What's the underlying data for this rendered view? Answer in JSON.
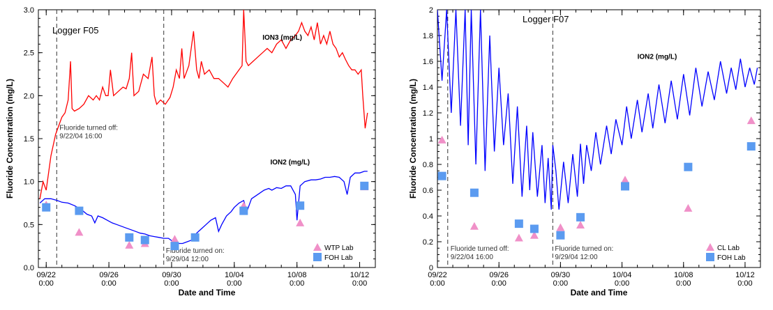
{
  "chart_data": [
    {
      "type": "line",
      "title": "Logger F05",
      "xlabel": "Date and Time",
      "ylabel": "Fluoride Concentration (mg/L)",
      "xlim": [
        21.5,
        43
      ],
      "ylim": [
        0,
        3
      ],
      "x_ticks": [
        22,
        26,
        30,
        34,
        38,
        42
      ],
      "x_tick_labels": [
        [
          "09/22",
          "0:00"
        ],
        [
          "09/26",
          "0:00"
        ],
        [
          "09/30",
          "0:00"
        ],
        [
          "10/04",
          "0:00"
        ],
        [
          "10/08",
          "0:00"
        ],
        [
          "10/12",
          "0:00"
        ]
      ],
      "y_ticks": [
        0,
        0.5,
        1,
        1.5,
        2,
        2.5,
        3
      ],
      "y_tick_labels": [
        "0.0",
        "0.5",
        "1.0",
        "1.5",
        "2.0",
        "2.5",
        "3.0"
      ],
      "annotations": [
        {
          "text_lines": [
            "Fluoride turned off:",
            "9/22/04  16:00"
          ],
          "x": 22.67
        },
        {
          "text_lines": [
            "Fluoride turned on:",
            "9/29/04  12:00"
          ],
          "x": 29.5
        }
      ],
      "series": [
        {
          "name": "ION3 (mg/L)",
          "kind": "line",
          "color": "#ff0000",
          "label_at": [
            35.8,
            2.65
          ],
          "x": [
            21.6,
            21.8,
            22.0,
            22.3,
            22.6,
            22.8,
            23.0,
            23.2,
            23.4,
            23.55,
            23.65,
            23.8,
            24.1,
            24.4,
            24.7,
            25.0,
            25.2,
            25.4,
            25.6,
            25.8,
            25.95,
            26.1,
            26.3,
            26.6,
            26.9,
            27.1,
            27.3,
            27.45,
            27.6,
            27.9,
            28.2,
            28.5,
            28.75,
            28.9,
            29.05,
            29.3,
            29.6,
            29.9,
            30.1,
            30.3,
            30.5,
            30.65,
            30.8,
            31.1,
            31.4,
            31.6,
            31.75,
            31.9,
            32.1,
            32.4,
            32.7,
            33.0,
            33.3,
            33.6,
            33.9,
            34.1,
            34.3,
            34.5,
            34.6,
            34.75,
            34.9,
            35.2,
            35.5,
            35.8,
            36.1,
            36.4,
            36.7,
            37.0,
            37.3,
            37.6,
            37.9,
            38.1,
            38.3,
            38.5,
            38.7,
            38.9,
            39.1,
            39.3,
            39.5,
            39.7,
            39.9,
            40.1,
            40.3,
            40.5,
            40.7,
            40.9,
            41.1,
            41.3,
            41.5,
            41.7,
            41.9,
            42.1,
            42.2,
            42.35,
            42.5
          ],
          "y": [
            0.8,
            1.0,
            0.9,
            1.3,
            1.55,
            1.65,
            1.75,
            1.8,
            1.95,
            2.4,
            1.85,
            1.82,
            1.85,
            1.9,
            2.0,
            1.95,
            2.0,
            1.95,
            2.1,
            2.0,
            2.0,
            2.3,
            2.0,
            2.05,
            2.1,
            2.08,
            2.2,
            2.5,
            2.0,
            2.05,
            2.25,
            2.2,
            2.45,
            2.0,
            1.9,
            1.95,
            1.9,
            1.98,
            2.1,
            2.3,
            2.2,
            2.55,
            2.2,
            2.35,
            2.75,
            2.3,
            2.2,
            2.4,
            2.25,
            2.3,
            2.2,
            2.2,
            2.15,
            2.1,
            2.2,
            2.25,
            2.3,
            2.35,
            3.0,
            2.4,
            2.35,
            2.4,
            2.45,
            2.5,
            2.55,
            2.5,
            2.6,
            2.65,
            2.55,
            2.65,
            2.7,
            2.75,
            2.85,
            2.75,
            2.7,
            2.8,
            2.65,
            2.85,
            2.6,
            2.7,
            2.6,
            2.75,
            2.6,
            2.55,
            2.45,
            2.5,
            2.42,
            2.35,
            2.3,
            2.3,
            2.25,
            2.3,
            2.0,
            1.62,
            1.8
          ]
        },
        {
          "name": "ION2 (mg/L)",
          "kind": "line",
          "color": "#0000ff",
          "label_at": [
            36.3,
            1.2
          ],
          "x": [
            21.6,
            21.9,
            22.3,
            22.7,
            23.0,
            23.4,
            23.8,
            24.2,
            24.6,
            24.9,
            25.1,
            25.3,
            25.6,
            25.9,
            26.2,
            26.5,
            26.8,
            27.1,
            27.4,
            27.7,
            28.0,
            28.3,
            28.6,
            28.9,
            29.2,
            29.5,
            29.8,
            30.1,
            30.4,
            30.7,
            31.0,
            31.3,
            31.6,
            31.9,
            32.2,
            32.5,
            32.8,
            33.0,
            33.2,
            33.5,
            33.8,
            34.0,
            34.3,
            34.6,
            34.8,
            35.1,
            35.5,
            35.9,
            36.2,
            36.4,
            36.7,
            37.0,
            37.3,
            37.6,
            37.9,
            38.0,
            38.2,
            38.5,
            38.9,
            39.2,
            39.5,
            39.8,
            40.1,
            40.4,
            40.7,
            41.0,
            41.2,
            41.4,
            41.7,
            42.0,
            42.3,
            42.5
          ],
          "y": [
            0.75,
            0.8,
            0.8,
            0.78,
            0.76,
            0.75,
            0.72,
            0.68,
            0.62,
            0.6,
            0.52,
            0.6,
            0.58,
            0.55,
            0.52,
            0.5,
            0.48,
            0.46,
            0.44,
            0.42,
            0.4,
            0.39,
            0.37,
            0.36,
            0.35,
            0.34,
            0.34,
            0.3,
            0.28,
            0.28,
            0.3,
            0.32,
            0.4,
            0.45,
            0.5,
            0.55,
            0.58,
            0.42,
            0.5,
            0.6,
            0.65,
            0.7,
            0.75,
            0.78,
            0.65,
            0.8,
            0.85,
            0.9,
            0.92,
            0.9,
            0.93,
            0.92,
            0.95,
            0.95,
            0.85,
            0.55,
            0.95,
            1.0,
            1.02,
            1.02,
            1.03,
            1.05,
            1.05,
            1.06,
            1.05,
            1.0,
            0.85,
            1.05,
            1.1,
            1.1,
            1.12,
            1.12
          ]
        },
        {
          "name": "WTP Lab",
          "kind": "marker",
          "marker": "triangle",
          "color": "#f090c8",
          "x": [
            22.0,
            24.1,
            27.3,
            28.3,
            30.2,
            34.6,
            38.2,
            42.3
          ],
          "y": [
            0.73,
            0.41,
            0.26,
            0.28,
            0.33,
            0.72,
            0.52,
            0.94
          ]
        },
        {
          "name": "FOH Lab",
          "kind": "marker",
          "marker": "square",
          "color": "#5b9bf0",
          "x": [
            22.0,
            24.1,
            27.3,
            28.3,
            30.2,
            31.5,
            34.6,
            38.2,
            42.3
          ],
          "y": [
            0.7,
            0.66,
            0.35,
            0.32,
            0.25,
            0.35,
            0.66,
            0.72,
            0.95
          ]
        }
      ]
    },
    {
      "type": "line",
      "title": "Logger F07",
      "xlabel": "Date and Time",
      "ylabel": "Fluoride Concentration (mg/L)",
      "xlim": [
        22,
        43
      ],
      "ylim": [
        0,
        2
      ],
      "x_ticks": [
        22,
        26,
        30,
        34,
        38,
        42
      ],
      "x_tick_labels": [
        [
          "09/22",
          "0:00"
        ],
        [
          "09/26",
          "0:00"
        ],
        [
          "09/30",
          "0:00"
        ],
        [
          "10/04",
          "0:00"
        ],
        [
          "10/08",
          "0:00"
        ],
        [
          "10/12",
          "0:00"
        ]
      ],
      "y_ticks": [
        0,
        0.2,
        0.4,
        0.6,
        0.8,
        1,
        1.2,
        1.4,
        1.6,
        1.8,
        2
      ],
      "y_tick_labels": [
        "0",
        "0.2",
        "0.4",
        "0.6",
        "0.8",
        "1",
        "1.2",
        "1.4",
        "1.6",
        "1.8",
        "2"
      ],
      "annotations": [
        {
          "text_lines": [
            "Fluoride turned off:",
            "9/22/04  16:00"
          ],
          "x": 22.67
        },
        {
          "text_lines": [
            "Fluoride turned on:",
            "9/29/04  12:00"
          ],
          "x": 29.5
        }
      ],
      "series": [
        {
          "name": "ION2 (mg/L)",
          "kind": "line",
          "color": "#0000ff",
          "label_at": [
            35.0,
            1.62
          ],
          "x": [
            22.0,
            22.3,
            22.6,
            22.9,
            23.2,
            23.5,
            23.8,
            24.0,
            24.2,
            24.5,
            24.8,
            25.1,
            25.4,
            25.7,
            26.0,
            26.3,
            26.6,
            26.9,
            27.2,
            27.5,
            27.8,
            28.0,
            28.2,
            28.5,
            28.8,
            29.0,
            29.2,
            29.4,
            29.5,
            29.7,
            29.9,
            30.2,
            30.5,
            30.8,
            31.1,
            31.3,
            31.5,
            31.7,
            32.0,
            32.3,
            32.6,
            33.0,
            33.3,
            33.6,
            34.0,
            34.3,
            34.6,
            35.0,
            35.3,
            35.7,
            36.0,
            36.4,
            36.8,
            37.2,
            37.6,
            38.0,
            38.4,
            38.8,
            39.2,
            39.6,
            40.0,
            40.4,
            40.8,
            41.1,
            41.4,
            41.7,
            42.0,
            42.3,
            42.6,
            42.8
          ],
          "y": [
            2.0,
            1.45,
            2.0,
            1.2,
            2.0,
            1.1,
            2.0,
            0.95,
            2.0,
            0.8,
            2.0,
            0.75,
            1.8,
            0.9,
            1.55,
            0.95,
            1.35,
            0.65,
            1.25,
            0.55,
            1.1,
            0.6,
            1.05,
            0.55,
            0.95,
            0.5,
            0.85,
            0.45,
            0.95,
            0.75,
            0.45,
            0.82,
            0.5,
            0.88,
            0.55,
            0.96,
            0.65,
            0.95,
            0.75,
            1.05,
            0.8,
            1.1,
            0.88,
            1.15,
            0.95,
            1.25,
            1.0,
            1.3,
            1.05,
            1.35,
            1.08,
            1.42,
            1.12,
            1.45,
            1.15,
            1.5,
            1.18,
            1.55,
            1.25,
            1.52,
            1.3,
            1.6,
            1.35,
            1.55,
            1.38,
            1.62,
            1.4,
            1.55,
            1.42,
            1.55
          ]
        },
        {
          "name": "CL Lab",
          "kind": "marker",
          "marker": "triangle",
          "color": "#f090c8",
          "x": [
            22.3,
            24.4,
            27.3,
            28.3,
            30.0,
            31.3,
            34.2,
            38.3,
            42.4
          ],
          "y": [
            0.99,
            0.32,
            0.23,
            0.25,
            0.31,
            0.33,
            0.68,
            0.46,
            1.14
          ]
        },
        {
          "name": "FOH Lab",
          "kind": "marker",
          "marker": "square",
          "color": "#5b9bf0",
          "x": [
            22.3,
            24.4,
            27.3,
            28.3,
            30.0,
            31.3,
            34.2,
            38.3,
            42.4
          ],
          "y": [
            0.71,
            0.58,
            0.34,
            0.3,
            0.25,
            0.39,
            0.63,
            0.78,
            0.94
          ]
        }
      ]
    }
  ]
}
